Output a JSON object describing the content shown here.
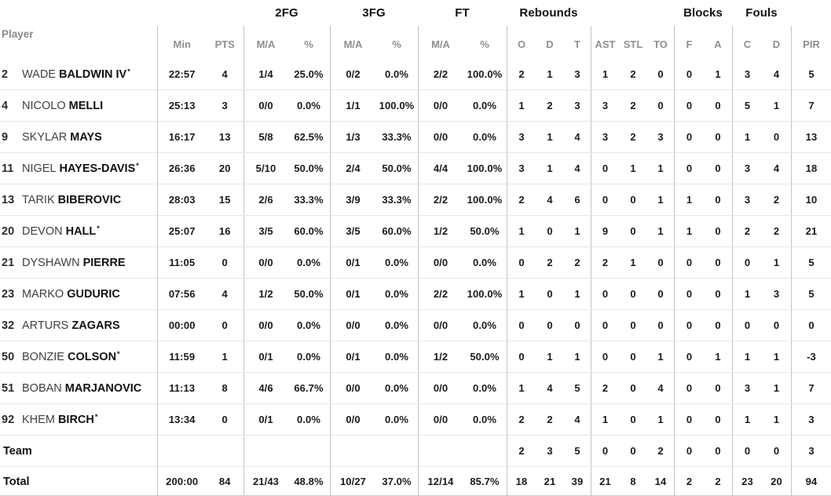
{
  "table": {
    "player_col_label": "Player",
    "starter_marker": "*",
    "group_headers": [
      {
        "key": "minpts",
        "label": ""
      },
      {
        "key": "fg2",
        "label": "2FG"
      },
      {
        "key": "fg3",
        "label": "3FG"
      },
      {
        "key": "ft",
        "label": "FT"
      },
      {
        "key": "reb",
        "label": "Rebounds"
      },
      {
        "key": "ast",
        "label": ""
      },
      {
        "key": "blk",
        "label": "Blocks"
      },
      {
        "key": "fl",
        "label": "Fouls"
      },
      {
        "key": "pir",
        "label": ""
      }
    ],
    "columns": {
      "min": "Min",
      "pts": "PTS",
      "fg2": "M/A",
      "fg2p": "%",
      "fg3": "M/A",
      "fg3p": "%",
      "ft": "M/A",
      "ftp": "%",
      "o": "O",
      "d": "D",
      "t": "T",
      "ast": "AST",
      "stl": "STL",
      "to": "TO",
      "bf": "F",
      "ba": "A",
      "fc": "C",
      "fd": "D",
      "pir": "PIR"
    },
    "rows": [
      {
        "number": "2",
        "first": "WADE",
        "last": "BALDWIN IV",
        "starter": true,
        "stats": {
          "min": "22:57",
          "pts": "4",
          "fg2": "1/4",
          "fg2p": "25.0%",
          "fg3": "0/2",
          "fg3p": "0.0%",
          "ft": "2/2",
          "ftp": "100.0%",
          "o": "2",
          "d": "1",
          "t": "3",
          "ast": "1",
          "stl": "2",
          "to": "0",
          "bf": "0",
          "ba": "1",
          "fc": "3",
          "fd": "4",
          "pir": "5"
        }
      },
      {
        "number": "4",
        "first": "NICOLO",
        "last": "MELLI",
        "starter": false,
        "stats": {
          "min": "25:13",
          "pts": "3",
          "fg2": "0/0",
          "fg2p": "0.0%",
          "fg3": "1/1",
          "fg3p": "100.0%",
          "ft": "0/0",
          "ftp": "0.0%",
          "o": "1",
          "d": "2",
          "t": "3",
          "ast": "3",
          "stl": "2",
          "to": "0",
          "bf": "0",
          "ba": "0",
          "fc": "5",
          "fd": "1",
          "pir": "7"
        }
      },
      {
        "number": "9",
        "first": "SKYLAR",
        "last": "MAYS",
        "starter": false,
        "stats": {
          "min": "16:17",
          "pts": "13",
          "fg2": "5/8",
          "fg2p": "62.5%",
          "fg3": "1/3",
          "fg3p": "33.3%",
          "ft": "0/0",
          "ftp": "0.0%",
          "o": "3",
          "d": "1",
          "t": "4",
          "ast": "3",
          "stl": "2",
          "to": "3",
          "bf": "0",
          "ba": "0",
          "fc": "1",
          "fd": "0",
          "pir": "13"
        }
      },
      {
        "number": "11",
        "first": "NIGEL",
        "last": "HAYES-DAVIS",
        "starter": true,
        "stats": {
          "min": "26:36",
          "pts": "20",
          "fg2": "5/10",
          "fg2p": "50.0%",
          "fg3": "2/4",
          "fg3p": "50.0%",
          "ft": "4/4",
          "ftp": "100.0%",
          "o": "3",
          "d": "1",
          "t": "4",
          "ast": "0",
          "stl": "1",
          "to": "1",
          "bf": "0",
          "ba": "0",
          "fc": "3",
          "fd": "4",
          "pir": "18"
        }
      },
      {
        "number": "13",
        "first": "TARIK",
        "last": "BIBEROVIC",
        "starter": false,
        "stats": {
          "min": "28:03",
          "pts": "15",
          "fg2": "2/6",
          "fg2p": "33.3%",
          "fg3": "3/9",
          "fg3p": "33.3%",
          "ft": "2/2",
          "ftp": "100.0%",
          "o": "2",
          "d": "4",
          "t": "6",
          "ast": "0",
          "stl": "0",
          "to": "1",
          "bf": "1",
          "ba": "0",
          "fc": "3",
          "fd": "2",
          "pir": "10"
        }
      },
      {
        "number": "20",
        "first": "DEVON",
        "last": "HALL",
        "starter": true,
        "stats": {
          "min": "25:07",
          "pts": "16",
          "fg2": "3/5",
          "fg2p": "60.0%",
          "fg3": "3/5",
          "fg3p": "60.0%",
          "ft": "1/2",
          "ftp": "50.0%",
          "o": "1",
          "d": "0",
          "t": "1",
          "ast": "9",
          "stl": "0",
          "to": "1",
          "bf": "1",
          "ba": "0",
          "fc": "2",
          "fd": "2",
          "pir": "21"
        }
      },
      {
        "number": "21",
        "first": "DYSHAWN",
        "last": "PIERRE",
        "starter": false,
        "stats": {
          "min": "11:05",
          "pts": "0",
          "fg2": "0/0",
          "fg2p": "0.0%",
          "fg3": "0/1",
          "fg3p": "0.0%",
          "ft": "0/0",
          "ftp": "0.0%",
          "o": "0",
          "d": "2",
          "t": "2",
          "ast": "2",
          "stl": "1",
          "to": "0",
          "bf": "0",
          "ba": "0",
          "fc": "0",
          "fd": "1",
          "pir": "5"
        }
      },
      {
        "number": "23",
        "first": "MARKO",
        "last": "GUDURIC",
        "starter": false,
        "stats": {
          "min": "07:56",
          "pts": "4",
          "fg2": "1/2",
          "fg2p": "50.0%",
          "fg3": "0/1",
          "fg3p": "0.0%",
          "ft": "2/2",
          "ftp": "100.0%",
          "o": "1",
          "d": "0",
          "t": "1",
          "ast": "0",
          "stl": "0",
          "to": "0",
          "bf": "0",
          "ba": "0",
          "fc": "1",
          "fd": "3",
          "pir": "5"
        }
      },
      {
        "number": "32",
        "first": "ARTURS",
        "last": "ZAGARS",
        "starter": false,
        "stats": {
          "min": "00:00",
          "pts": "0",
          "fg2": "0/0",
          "fg2p": "0.0%",
          "fg3": "0/0",
          "fg3p": "0.0%",
          "ft": "0/0",
          "ftp": "0.0%",
          "o": "0",
          "d": "0",
          "t": "0",
          "ast": "0",
          "stl": "0",
          "to": "0",
          "bf": "0",
          "ba": "0",
          "fc": "0",
          "fd": "0",
          "pir": "0"
        }
      },
      {
        "number": "50",
        "first": "BONZIE",
        "last": "COLSON",
        "starter": true,
        "stats": {
          "min": "11:59",
          "pts": "1",
          "fg2": "0/1",
          "fg2p": "0.0%",
          "fg3": "0/1",
          "fg3p": "0.0%",
          "ft": "1/2",
          "ftp": "50.0%",
          "o": "0",
          "d": "1",
          "t": "1",
          "ast": "0",
          "stl": "0",
          "to": "1",
          "bf": "0",
          "ba": "1",
          "fc": "1",
          "fd": "1",
          "pir": "-3"
        }
      },
      {
        "number": "51",
        "first": "BOBAN",
        "last": "MARJANOVIC",
        "starter": false,
        "stats": {
          "min": "11:13",
          "pts": "8",
          "fg2": "4/6",
          "fg2p": "66.7%",
          "fg3": "0/0",
          "fg3p": "0.0%",
          "ft": "0/0",
          "ftp": "0.0%",
          "o": "1",
          "d": "4",
          "t": "5",
          "ast": "2",
          "stl": "0",
          "to": "4",
          "bf": "0",
          "ba": "0",
          "fc": "3",
          "fd": "1",
          "pir": "7"
        }
      },
      {
        "number": "92",
        "first": "KHEM",
        "last": "BIRCH",
        "starter": true,
        "stats": {
          "min": "13:34",
          "pts": "0",
          "fg2": "0/1",
          "fg2p": "0.0%",
          "fg3": "0/0",
          "fg3p": "0.0%",
          "ft": "0/0",
          "ftp": "0.0%",
          "o": "2",
          "d": "2",
          "t": "4",
          "ast": "1",
          "stl": "0",
          "to": "1",
          "bf": "0",
          "ba": "0",
          "fc": "1",
          "fd": "1",
          "pir": "3"
        }
      },
      {
        "label": "Team",
        "stats": {
          "min": "",
          "pts": "",
          "fg2": "",
          "fg2p": "",
          "fg3": "",
          "fg3p": "",
          "ft": "",
          "ftp": "",
          "o": "2",
          "d": "3",
          "t": "5",
          "ast": "0",
          "stl": "0",
          "to": "2",
          "bf": "0",
          "ba": "0",
          "fc": "0",
          "fd": "0",
          "pir": "3"
        }
      },
      {
        "label": "Total",
        "is_total": true,
        "stats": {
          "min": "200:00",
          "pts": "84",
          "fg2": "21/43",
          "fg2p": "48.8%",
          "fg3": "10/27",
          "fg3p": "37.0%",
          "ft": "12/14",
          "ftp": "85.7%",
          "o": "18",
          "d": "21",
          "t": "39",
          "ast": "21",
          "stl": "8",
          "to": "14",
          "bf": "2",
          "ba": "2",
          "fc": "23",
          "fd": "20",
          "pir": "94"
        }
      }
    ]
  }
}
